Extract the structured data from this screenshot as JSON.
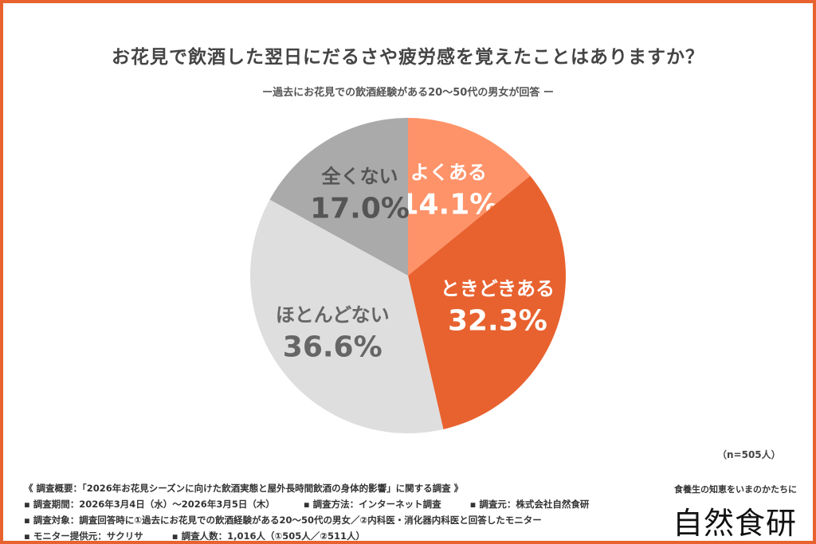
{
  "chart_data": {
    "type": "pie",
    "title": "お花見で飲酒した翌日にだるさや疲労感を覚えたことはありますか？",
    "subtitle": "ー過去にお花見での飲酒経験がある20〜50代の男女が回答 ー",
    "start": "top, clockwise",
    "slices": [
      {
        "label": "よくある",
        "value": 14.1,
        "display": "14.1%",
        "color": "#fe9369",
        "text_color": "#ffffff"
      },
      {
        "label": "ときどきある",
        "value": 32.3,
        "display": "32.3%",
        "color": "#e8622f",
        "text_color": "#ffffff"
      },
      {
        "label": "ほとんどない",
        "value": 36.6,
        "display": "36.6%",
        "color": "#dedede",
        "text_color": "#666666"
      },
      {
        "label": "全くない",
        "value": 17.0,
        "display": "17.0%",
        "color": "#aaaaaa",
        "text_color": "#555555"
      }
    ],
    "note": "（n=505人）"
  },
  "footer": {
    "line1": "《 調査概要：「2026年お花見シーズンに向けた飲酒実態と屋外長時間飲酒の身体的影響」に関する調査 》",
    "line2": [
      "▪ 調査期間：2026年3月4日（水）〜2026年3月5日（木）",
      "▪ 調査方法：インターネット調査",
      "▪ 調査元：株式会社自然食研"
    ],
    "line3": "▪ 調査対象：調査回答時に①過去にお花見での飲酒経験がある20〜50代の男女／②内科医・消化器内科医と回答したモニター",
    "line4": [
      "▪ モニター提供元：サクリサ",
      "▪ 調査人数：1,016人（①505人／②511人）"
    ]
  },
  "brand": {
    "tagline": "食養生の知恵をいまのかたちに",
    "logo": "自然食研",
    "border_color": "#e8622f"
  }
}
